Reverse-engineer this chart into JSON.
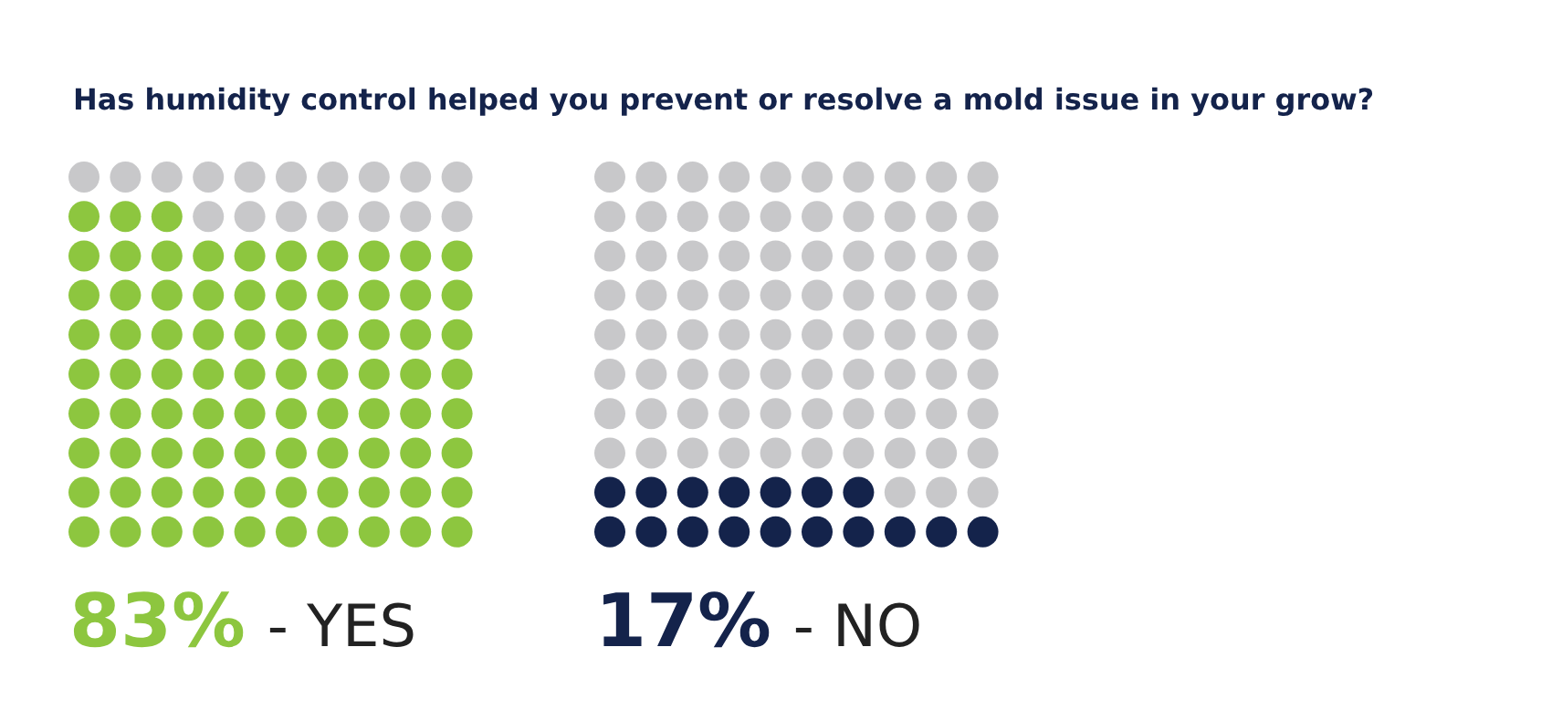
{
  "chart_data": {
    "type": "other",
    "title": "Has humidity control helped you prevent or resolve a mold issue in your grow?",
    "categories": [
      "- YES",
      "- NO"
    ],
    "values": [
      83,
      17
    ],
    "value_labels": [
      "83%",
      "17%"
    ],
    "colors": [
      "#8dc63f",
      "#14234b"
    ]
  }
}
